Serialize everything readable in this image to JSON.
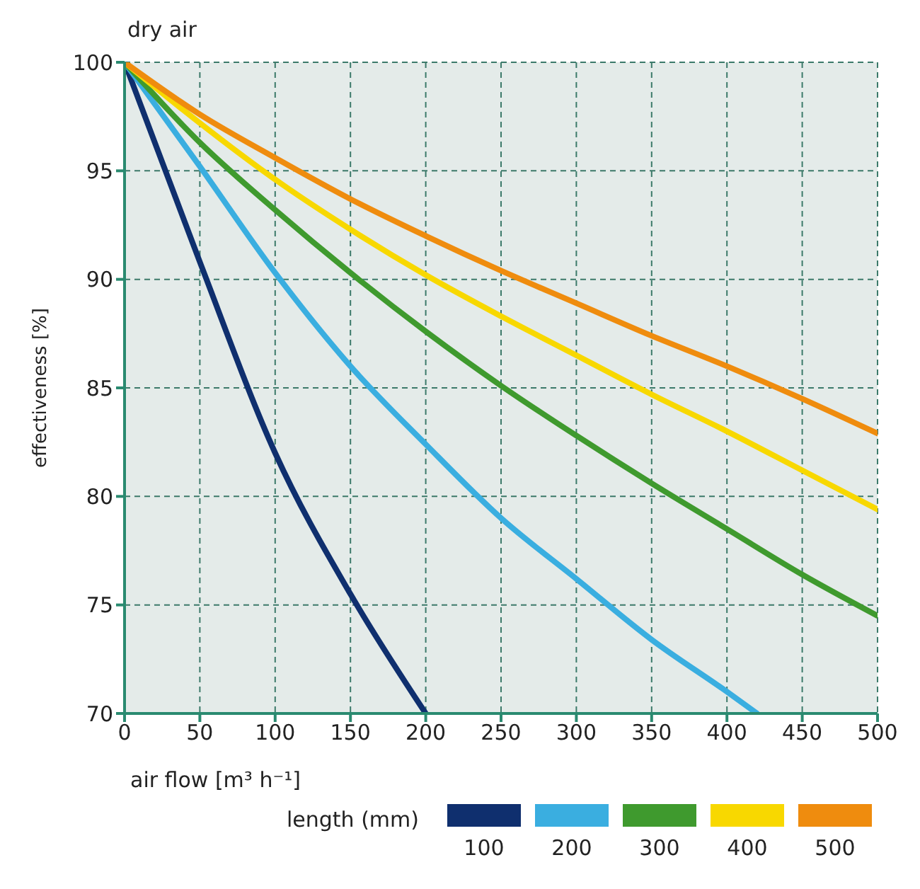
{
  "chart_data": {
    "type": "line",
    "title": "dry air",
    "xlabel": "air flow [m³ h⁻¹]",
    "ylabel": "effectiveness [%]",
    "legend_title": "length (mm)",
    "xlim": [
      0,
      500
    ],
    "xticks": [
      0,
      50,
      100,
      150,
      200,
      250,
      300,
      350,
      400,
      450,
      500
    ],
    "ylim": [
      70,
      100
    ],
    "yticks": [
      70,
      75,
      80,
      85,
      90,
      95,
      100
    ],
    "grid": true,
    "legend": "bottom",
    "marker": "none",
    "line_style": "solid",
    "series": [
      {
        "name": "100",
        "color": "#0f2f6e",
        "x": [
          0,
          50,
          100,
          150,
          200
        ],
        "values": [
          100,
          90.8,
          82,
          75.5,
          70
        ]
      },
      {
        "name": "200",
        "color": "#3aaee0",
        "x": [
          0,
          50,
          100,
          150,
          200,
          250,
          300,
          350,
          400,
          420
        ],
        "values": [
          100,
          95.2,
          90.3,
          86,
          82.4,
          79,
          76.2,
          73.4,
          71,
          70
        ]
      },
      {
        "name": "300",
        "color": "#3f9a2e",
        "x": [
          0,
          50,
          100,
          150,
          200,
          250,
          300,
          350,
          400,
          450,
          500
        ],
        "values": [
          100,
          96.3,
          93.2,
          90.3,
          87.6,
          85.1,
          82.8,
          80.6,
          78.5,
          76.4,
          74.5
        ]
      },
      {
        "name": "400",
        "color": "#f8d800",
        "x": [
          0,
          50,
          100,
          150,
          200,
          250,
          300,
          350,
          400,
          450,
          500
        ],
        "values": [
          100,
          97.2,
          94.6,
          92.3,
          90.2,
          88.3,
          86.5,
          84.7,
          83,
          81.2,
          79.4
        ]
      },
      {
        "name": "500",
        "color": "#ef8c0e",
        "x": [
          0,
          50,
          100,
          150,
          200,
          250,
          300,
          350,
          400,
          450,
          500
        ],
        "values": [
          100,
          97.6,
          95.6,
          93.7,
          92,
          90.4,
          88.9,
          87.4,
          86,
          84.5,
          82.9
        ]
      }
    ]
  }
}
